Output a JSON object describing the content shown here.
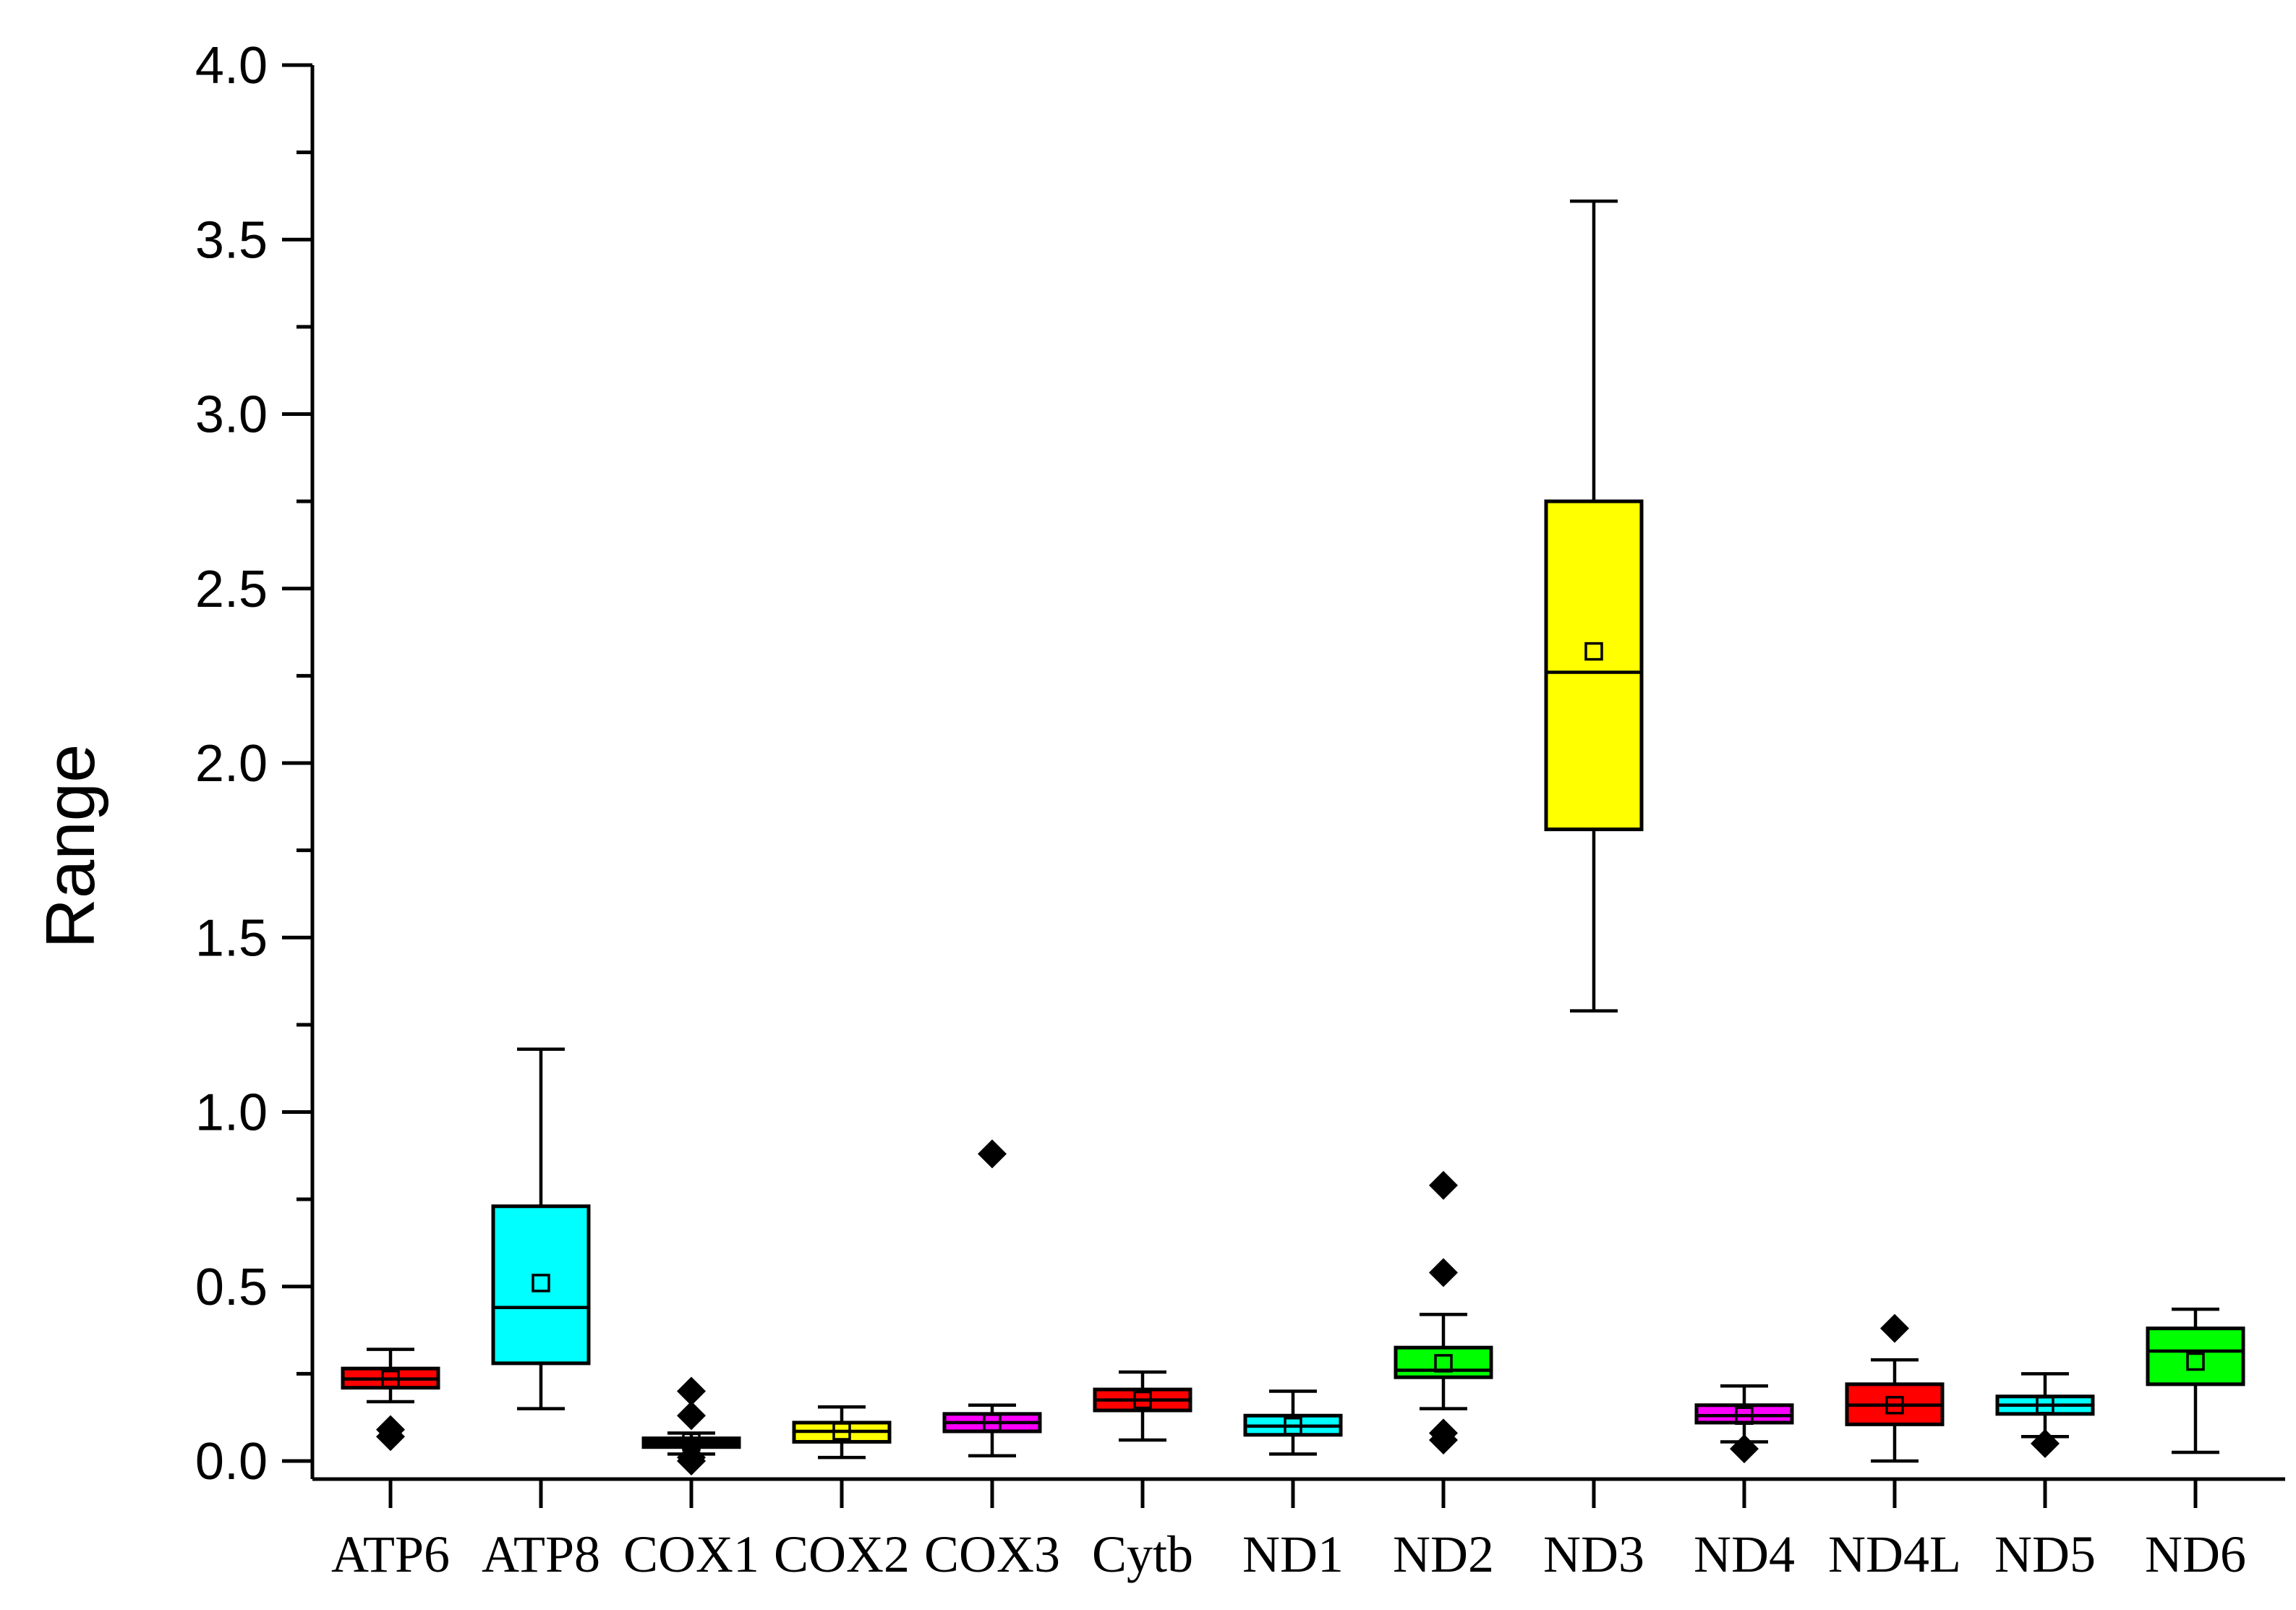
{
  "chart_data": {
    "type": "box",
    "ylabel": "Range",
    "xlabel": "",
    "ylim": [
      0,
      4.0
    ],
    "y_ticks": [
      "0.0",
      "0.5",
      "1.0",
      "1.5",
      "2.0",
      "2.5",
      "3.0",
      "3.5",
      "4.0"
    ],
    "y_tick_values": [
      0,
      0.5,
      1.0,
      1.5,
      2.0,
      2.5,
      3.0,
      3.5,
      4.0
    ],
    "y_minor_step": 0.25,
    "grid": false,
    "categories": [
      "ATP6",
      "ATP8",
      "COX1",
      "COX2",
      "COX3",
      "Cytb",
      "ND1",
      "ND2",
      "ND3",
      "ND4",
      "ND4L",
      "ND5",
      "ND6"
    ],
    "boxes": [
      {
        "label": "ATP6",
        "color": "#ff0000",
        "whisker_low": 0.17,
        "q1": 0.21,
        "median": 0.235,
        "q3": 0.265,
        "whisker_high": 0.32,
        "mean": 0.235,
        "outliers": [
          0.07,
          0.09
        ]
      },
      {
        "label": "ATP8",
        "color": "#00ffff",
        "whisker_low": 0.15,
        "q1": 0.28,
        "median": 0.44,
        "q3": 0.73,
        "whisker_high": 1.18,
        "mean": 0.51,
        "outliers": []
      },
      {
        "label": "COX1",
        "color": "#000000",
        "whisker_low": 0.02,
        "q1": 0.04,
        "median": 0.055,
        "q3": 0.065,
        "whisker_high": 0.08,
        "mean": 0.055,
        "outliers": [
          0.0,
          0.01,
          0.13,
          0.2
        ]
      },
      {
        "label": "COX2",
        "color": "#ffff00",
        "whisker_low": 0.01,
        "q1": 0.055,
        "median": 0.085,
        "q3": 0.11,
        "whisker_high": 0.155,
        "mean": 0.085,
        "outliers": []
      },
      {
        "label": "COX3",
        "color": "#ff00ff",
        "whisker_low": 0.015,
        "q1": 0.085,
        "median": 0.11,
        "q3": 0.135,
        "whisker_high": 0.16,
        "mean": 0.11,
        "outliers": [
          0.88
        ]
      },
      {
        "label": "Cytb",
        "color": "#ff0000",
        "whisker_low": 0.06,
        "q1": 0.145,
        "median": 0.175,
        "q3": 0.205,
        "whisker_high": 0.255,
        "mean": 0.175,
        "outliers": []
      },
      {
        "label": "ND1",
        "color": "#00ffff",
        "whisker_low": 0.02,
        "q1": 0.075,
        "median": 0.1,
        "q3": 0.13,
        "whisker_high": 0.2,
        "mean": 0.1,
        "outliers": []
      },
      {
        "label": "ND2",
        "color": "#00ff00",
        "whisker_low": 0.15,
        "q1": 0.24,
        "median": 0.26,
        "q3": 0.325,
        "whisker_high": 0.42,
        "mean": 0.28,
        "outliers": [
          0.06,
          0.08,
          0.54,
          0.79
        ]
      },
      {
        "label": "ND3",
        "color": "#ffff00",
        "whisker_low": 1.29,
        "q1": 1.81,
        "median": 2.26,
        "q3": 2.75,
        "whisker_high": 3.61,
        "mean": 2.32,
        "outliers": []
      },
      {
        "label": "ND4",
        "color": "#ff00ff",
        "whisker_low": 0.055,
        "q1": 0.11,
        "median": 0.13,
        "q3": 0.16,
        "whisker_high": 0.215,
        "mean": 0.13,
        "outliers": [
          0.035
        ]
      },
      {
        "label": "ND4L",
        "color": "#ff0000",
        "whisker_low": 0.0,
        "q1": 0.105,
        "median": 0.16,
        "q3": 0.22,
        "whisker_high": 0.29,
        "mean": 0.16,
        "outliers": [
          0.38
        ]
      },
      {
        "label": "ND5",
        "color": "#00ffff",
        "whisker_low": 0.07,
        "q1": 0.135,
        "median": 0.16,
        "q3": 0.185,
        "whisker_high": 0.25,
        "mean": 0.16,
        "outliers": [
          0.05
        ]
      },
      {
        "label": "ND6",
        "color": "#00ff00",
        "whisker_low": 0.025,
        "q1": 0.22,
        "median": 0.315,
        "q3": 0.38,
        "whisker_high": 0.435,
        "mean": 0.285,
        "outliers": []
      }
    ]
  }
}
